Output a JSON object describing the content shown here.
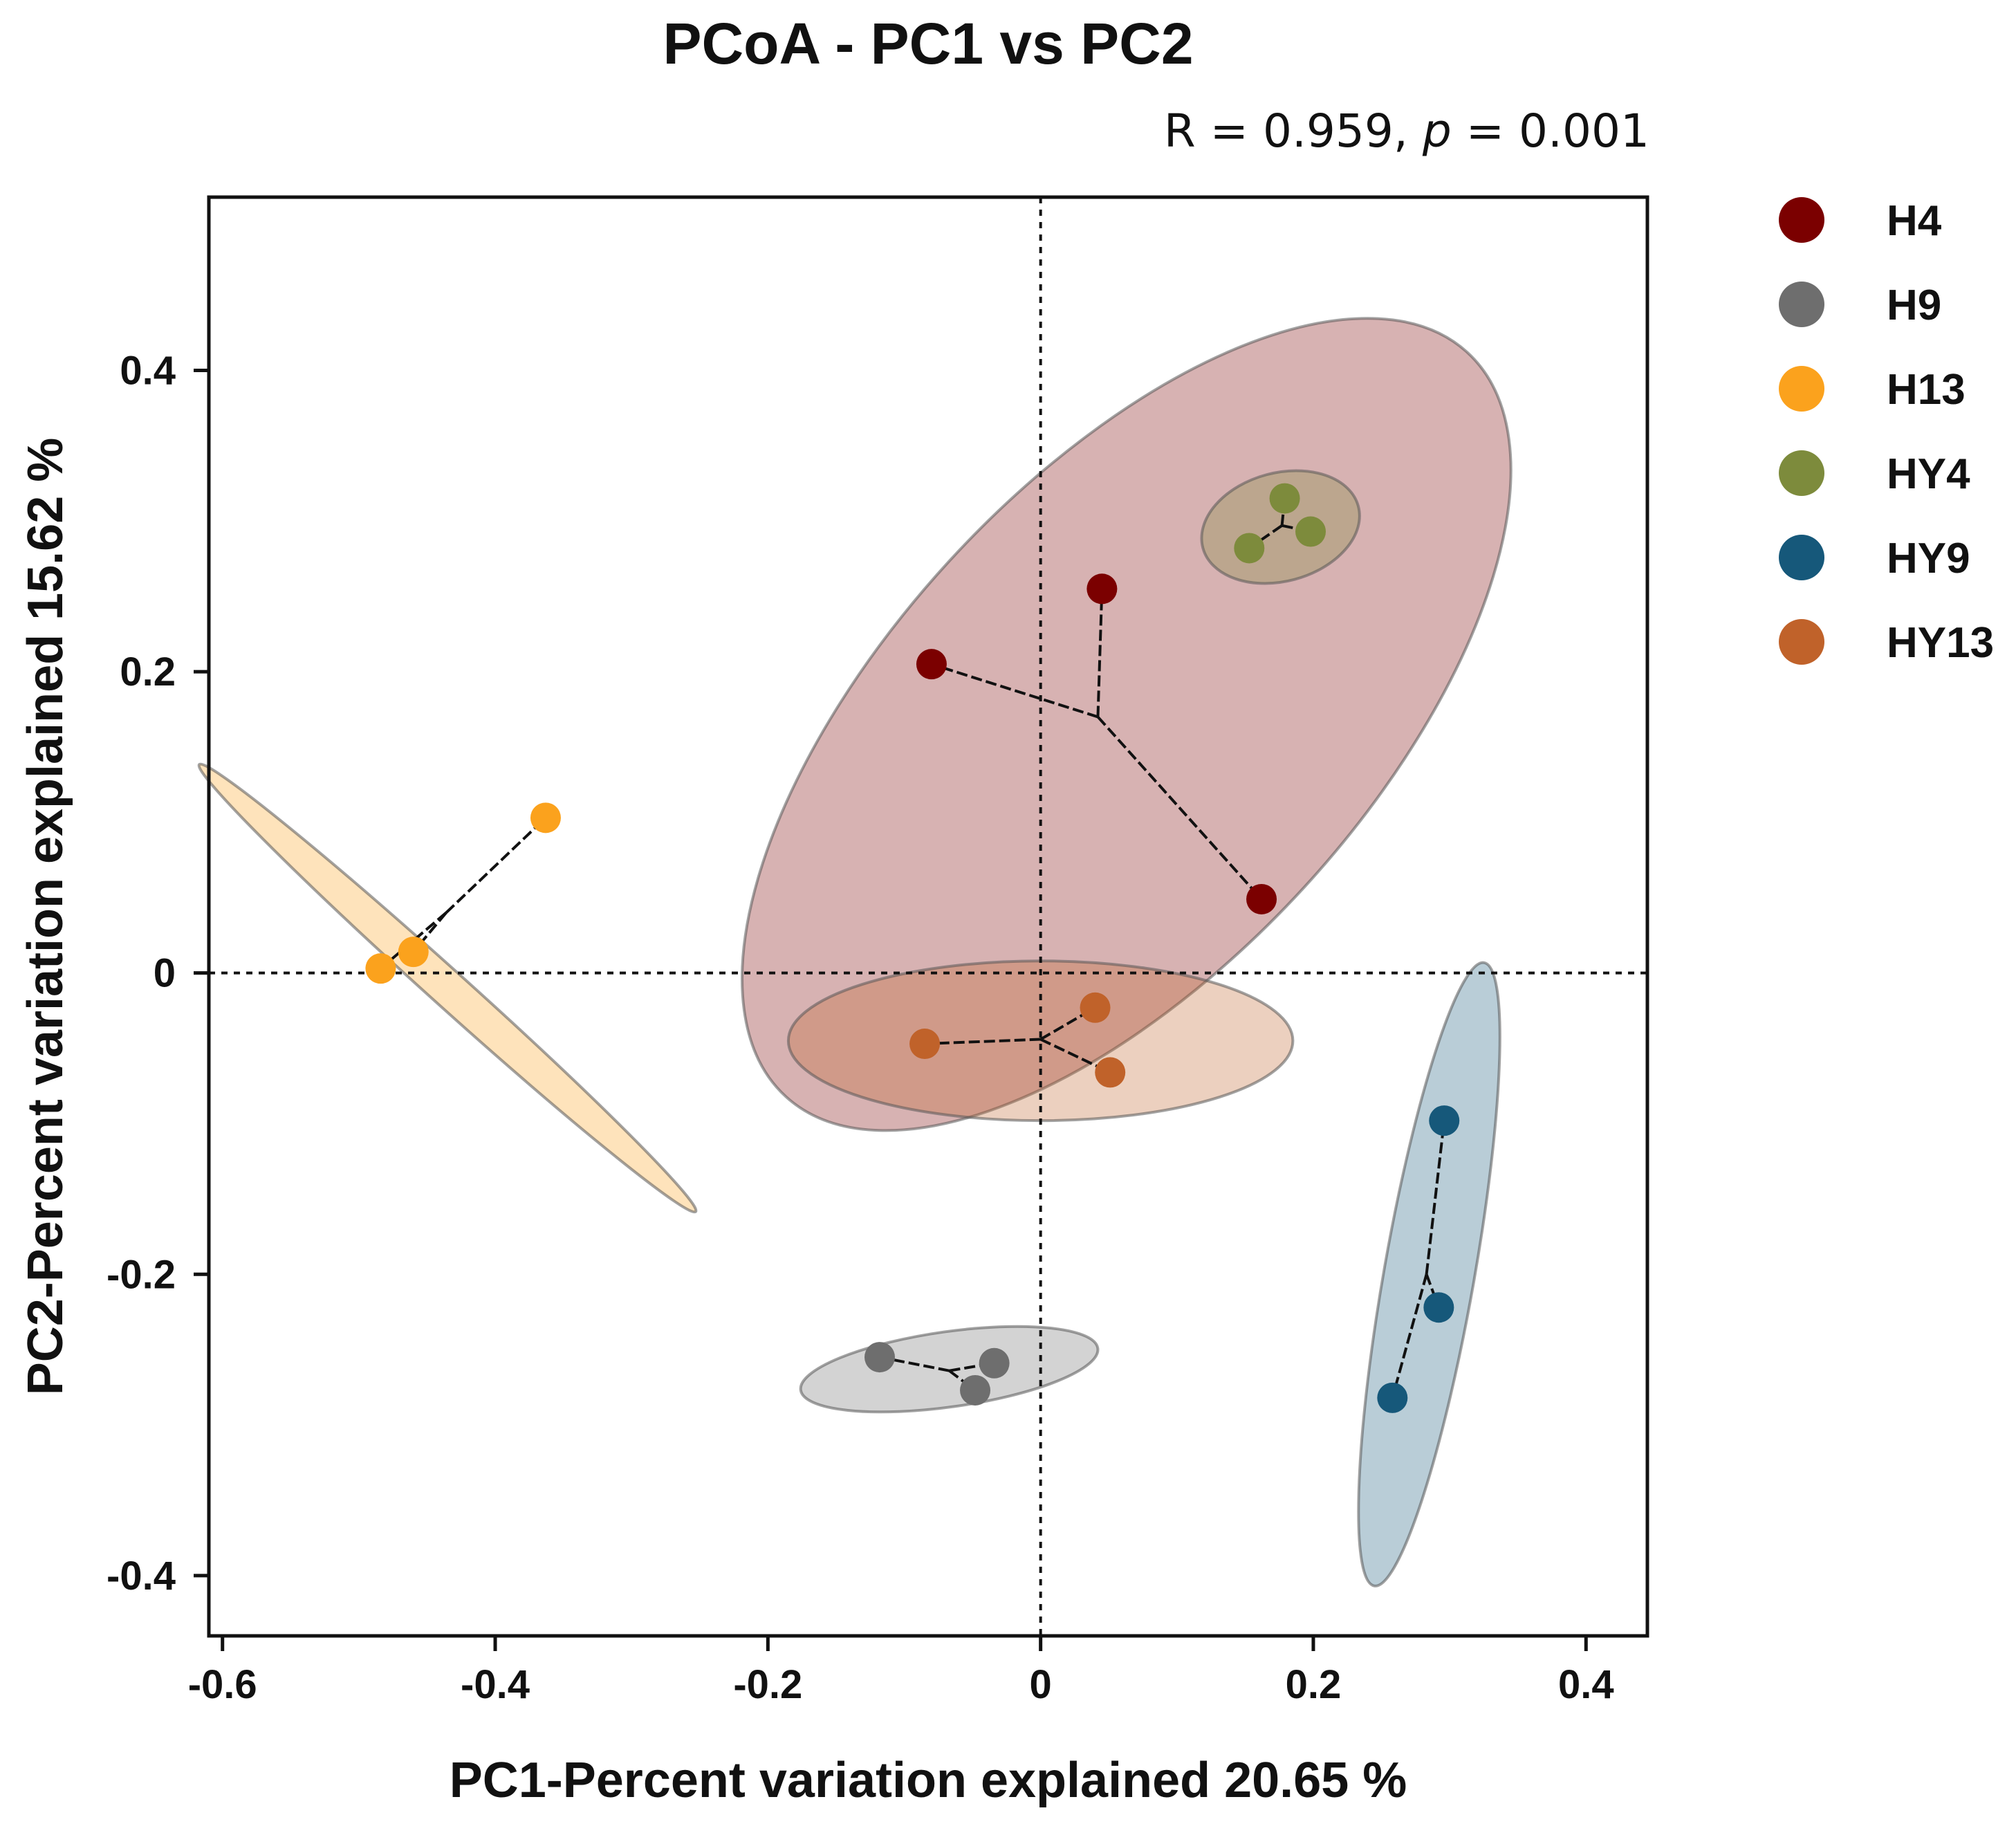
{
  "chart_data": {
    "type": "scatter",
    "title": "PCoA - PC1 vs PC2",
    "stat_text": {
      "prefix": "R = 0.959, ",
      "p_symbol": "p",
      "suffix": " = 0.001"
    },
    "xlabel": "PC1-Percent variation explained 20.65 %",
    "ylabel": "PC2-Percent variation explained 15.62 %",
    "xlim": [
      -0.61,
      0.445
    ],
    "ylim": [
      -0.44,
      0.515
    ],
    "xticks": [
      {
        "value": -0.6,
        "label": "-0.6"
      },
      {
        "value": -0.4,
        "label": "-0.4"
      },
      {
        "value": -0.2,
        "label": "-0.2"
      },
      {
        "value": 0,
        "label": "0"
      },
      {
        "value": 0.2,
        "label": "0.2"
      },
      {
        "value": 0.4,
        "label": "0.4"
      }
    ],
    "yticks": [
      {
        "value": -0.4,
        "label": "-0.4"
      },
      {
        "value": -0.2,
        "label": "-0.2"
      },
      {
        "value": 0,
        "label": "0"
      },
      {
        "value": 0.2,
        "label": "0.2"
      },
      {
        "value": 0.4,
        "label": "0.4"
      }
    ],
    "reference_lines": {
      "x": 0,
      "y": 0
    },
    "legend_position": "right",
    "series": [
      {
        "name": "H4",
        "color": "#7B0000",
        "fill_opacity": 0.3,
        "points": [
          [
            -0.08,
            0.205
          ],
          [
            0.045,
            0.255
          ],
          [
            0.162,
            0.049
          ]
        ],
        "centroid": [
          0.042,
          0.17
        ],
        "ellipse": {
          "cx": 0.063,
          "cy": 0.165,
          "rx": 0.37,
          "ry": 0.16,
          "angle": 47.5
        }
      },
      {
        "name": "H9",
        "color": "#6E6E6E",
        "fill_opacity": 0.3,
        "points": [
          [
            -0.118,
            -0.255
          ],
          [
            -0.048,
            -0.277
          ],
          [
            -0.034,
            -0.259
          ]
        ],
        "centroid": [
          -0.067,
          -0.264
        ],
        "ellipse": {
          "cx": -0.067,
          "cy": -0.263,
          "rx": 0.11,
          "ry": 0.025,
          "angle": 8
        }
      },
      {
        "name": "H13",
        "color": "#FBA21D",
        "fill_opacity": 0.3,
        "points": [
          [
            -0.484,
            0.003
          ],
          [
            -0.46,
            0.014
          ],
          [
            -0.363,
            0.103
          ]
        ],
        "centroid": [
          -0.436,
          0.04
        ],
        "ellipse": {
          "cx": -0.435,
          "cy": -0.01,
          "rx": 0.245,
          "ry": 0.012,
          "angle": -42
        }
      },
      {
        "name": "HY4",
        "color": "#7D8B3C",
        "fill_opacity": 0.3,
        "points": [
          [
            0.153,
            0.282
          ],
          [
            0.179,
            0.315
          ],
          [
            0.198,
            0.293
          ]
        ],
        "centroid": [
          0.177,
          0.297
        ],
        "ellipse": {
          "cx": 0.176,
          "cy": 0.296,
          "rx": 0.059,
          "ry": 0.036,
          "angle": 15
        }
      },
      {
        "name": "HY9",
        "color": "#16587A",
        "fill_opacity": 0.3,
        "points": [
          [
            0.296,
            -0.098
          ],
          [
            0.292,
            -0.222
          ],
          [
            0.258,
            -0.282
          ]
        ],
        "centroid": [
          0.283,
          -0.2
        ],
        "ellipse": {
          "cx": 0.285,
          "cy": -0.2,
          "rx": 0.232,
          "ry": 0.03,
          "angle": 80
        }
      },
      {
        "name": "HY13",
        "color": "#C0622A",
        "fill_opacity": 0.3,
        "points": [
          [
            -0.085,
            -0.047
          ],
          [
            0.04,
            -0.023
          ],
          [
            0.051,
            -0.066
          ]
        ],
        "centroid": [
          0.0,
          -0.044
        ],
        "ellipse": {
          "cx": 0.0,
          "cy": -0.045,
          "rx": 0.185,
          "ry": 0.053,
          "angle": 0
        }
      }
    ]
  }
}
